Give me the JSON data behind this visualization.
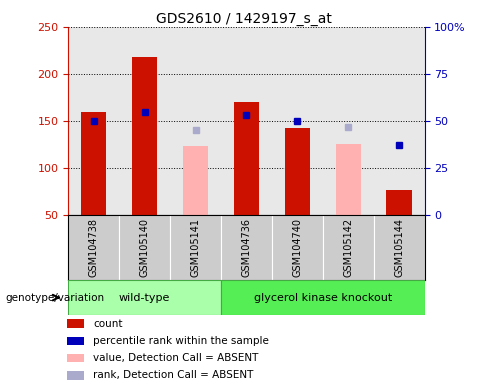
{
  "title": "GDS2610 / 1429197_s_at",
  "samples": [
    "GSM104738",
    "GSM105140",
    "GSM105141",
    "GSM104736",
    "GSM104740",
    "GSM105142",
    "GSM105144"
  ],
  "wt_count": 3,
  "gk_count": 4,
  "count_values": [
    160,
    218,
    null,
    170,
    143,
    null,
    77
  ],
  "count_absent_values": [
    null,
    null,
    123,
    null,
    null,
    125,
    null
  ],
  "percentile_rank": [
    50,
    55,
    null,
    53,
    50,
    null,
    37
  ],
  "rank_absent": [
    null,
    null,
    45,
    null,
    null,
    47,
    null
  ],
  "ylim_left": [
    50,
    250
  ],
  "ylim_right": [
    0,
    100
  ],
  "yticks_left": [
    50,
    100,
    150,
    200,
    250
  ],
  "yticks_right": [
    0,
    25,
    50,
    75,
    100
  ],
  "ytick_labels_right": [
    "0",
    "25",
    "50",
    "75",
    "100%"
  ],
  "bar_width": 0.5,
  "bar_color_count": "#cc1100",
  "bar_color_absent": "#ffb0b0",
  "square_color_rank": "#0000bb",
  "square_color_rank_absent": "#aaaacc",
  "wt_color": "#aaffaa",
  "gk_color": "#55ee55",
  "sample_bg_color": "#cccccc",
  "sample_border_color": "#999999",
  "plot_bg_color": "#e8e8e8",
  "legend_items": [
    {
      "label": "count",
      "color": "#cc1100"
    },
    {
      "label": "percentile rank within the sample",
      "color": "#0000bb"
    },
    {
      "label": "value, Detection Call = ABSENT",
      "color": "#ffb0b0"
    },
    {
      "label": "rank, Detection Call = ABSENT",
      "color": "#aaaacc"
    }
  ]
}
